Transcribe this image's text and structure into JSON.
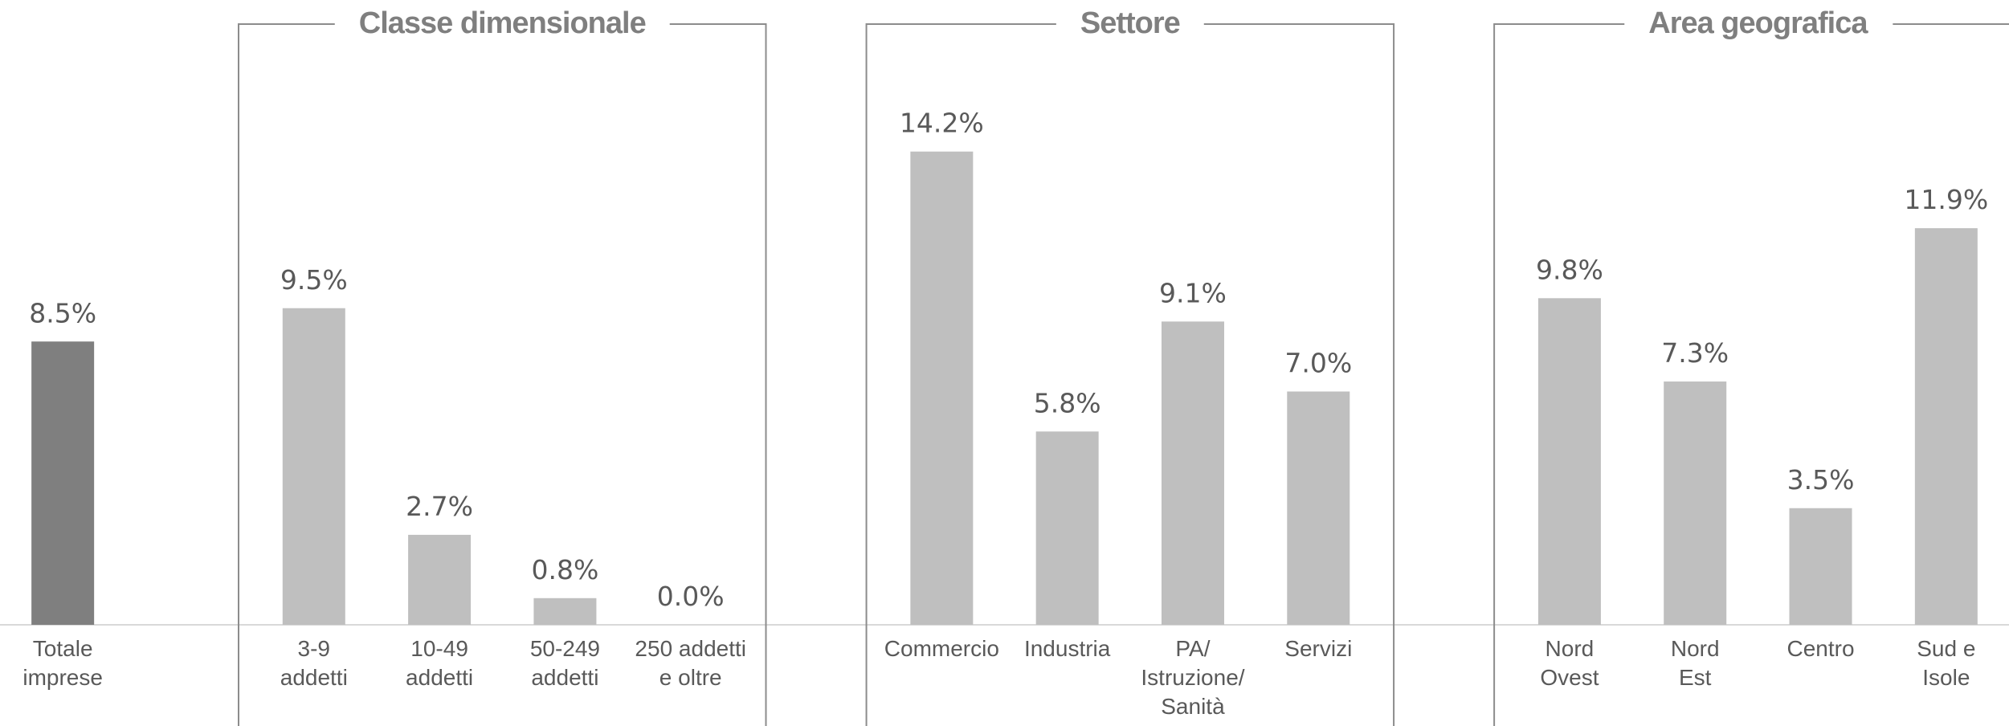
{
  "chart_data": {
    "type": "bar",
    "ylim": [
      0,
      16
    ],
    "groups": [
      {
        "categories": [
          "Totale\nimprese"
        ],
        "values": [
          8.5
        ],
        "value_labels": [
          "8.5%"
        ],
        "color": "#7f7f7f"
      },
      {
        "title": "Classe dimensionale",
        "categories": [
          "3-9\naddetti",
          "10-49\naddetti",
          "50-249\naddetti",
          "250 addetti\ne oltre"
        ],
        "values": [
          9.5,
          2.7,
          0.8,
          0.0
        ],
        "value_labels": [
          "9.5%",
          "2.7%",
          "0.8%",
          "0.0%"
        ],
        "color": "#bfbfbf"
      },
      {
        "title": "Settore",
        "categories": [
          "Commercio",
          "Industria",
          "PA/\nIstruzione/\nSanità",
          "Servizi"
        ],
        "values": [
          14.2,
          5.8,
          9.1,
          7.0
        ],
        "value_labels": [
          "14.2%",
          "5.8%",
          "9.1%",
          "7.0%"
        ],
        "color": "#bfbfbf"
      },
      {
        "title": "Area geografica",
        "categories": [
          "Nord\nOvest",
          "Nord\nEst",
          "Centro",
          "Sud e\nIsole"
        ],
        "values": [
          9.8,
          7.3,
          3.5,
          11.9
        ],
        "value_labels": [
          "9.8%",
          "7.3%",
          "3.5%",
          "11.9%"
        ],
        "color": "#bfbfbf"
      }
    ]
  }
}
